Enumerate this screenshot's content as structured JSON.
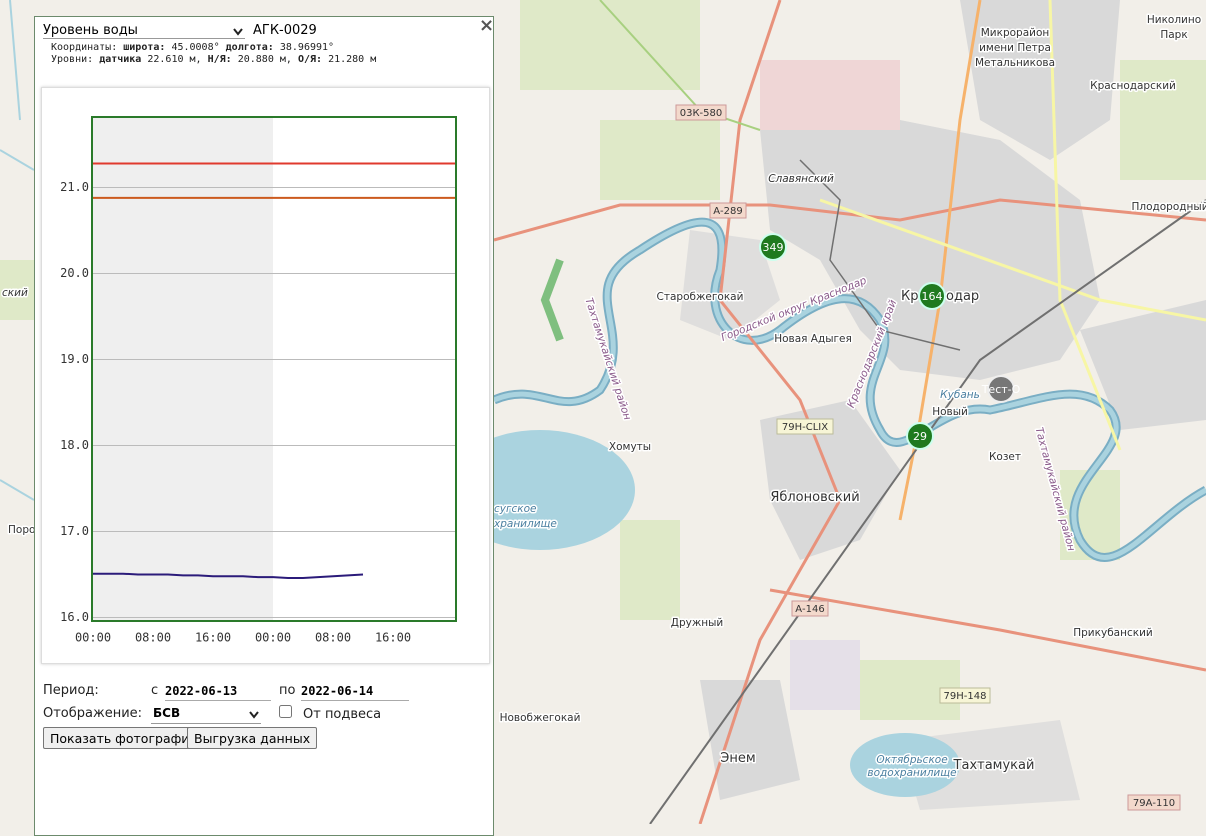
{
  "panel": {
    "select": "Уровень воды",
    "station": "АГК-0029",
    "close": "×",
    "coords": {
      "label": "Координаты:",
      "lat_label": "широта:",
      "lat": "45.0008°",
      "lon_label": "долгота:",
      "lon": "38.96991°"
    },
    "levels": {
      "label": "Уровни:",
      "sensor_label": "датчика",
      "sensor": "22.610 м,",
      "low_label": "Н/Я:",
      "low": "20.880 м,",
      "high_label": "О/Я:",
      "high": "21.280 м"
    }
  },
  "chart_data": {
    "type": "line",
    "x": [
      0,
      2,
      4,
      6,
      8,
      10,
      12,
      14,
      16,
      18,
      20,
      22,
      24,
      26,
      28,
      30,
      32,
      34,
      36
    ],
    "series": [
      {
        "color": "#2b1b7a",
        "values": [
          16.51,
          16.51,
          16.51,
          16.5,
          16.5,
          16.5,
          16.49,
          16.49,
          16.48,
          16.48,
          16.48,
          16.47,
          16.47,
          16.46,
          16.46,
          16.47,
          16.48,
          16.49,
          16.5
        ]
      }
    ],
    "thresholds": [
      {
        "value": 21.28,
        "color": "#e03a2e"
      },
      {
        "value": 20.88,
        "color": "#cc5a1e"
      }
    ],
    "shade": [
      0,
      24
    ],
    "xlim": [
      0,
      48.4
    ],
    "ylim": [
      15.96,
      21.82
    ],
    "xticks": [
      {
        "value": 0,
        "label": "00:00"
      },
      {
        "value": 8,
        "label": "08:00"
      },
      {
        "value": 16,
        "label": "16:00"
      },
      {
        "value": 24,
        "label": "00:00"
      },
      {
        "value": 32,
        "label": "08:00"
      },
      {
        "value": 40,
        "label": "16:00"
      }
    ],
    "yticks": [
      {
        "value": 16,
        "label": "16.0"
      },
      {
        "value": 17,
        "label": "17.0"
      },
      {
        "value": 18,
        "label": "18.0"
      },
      {
        "value": 19,
        "label": "19.0"
      },
      {
        "value": 20,
        "label": "20.0"
      },
      {
        "value": 21,
        "label": "21.0"
      }
    ],
    "grid": true,
    "frame_color": "#2a7a2a"
  },
  "form": {
    "period_label": "Период:",
    "from_label": "с",
    "from": "2022-06-13",
    "to_label": "по",
    "to": "2022-06-14",
    "display_label": "Отображение:",
    "display": "БСВ",
    "checkbox_label": "От подвеса",
    "photos_button": "Показать фотографии",
    "export_button": "Выгрузка данных"
  },
  "map": {
    "labels": [
      "Николино",
      "Парк",
      "Микрорайон",
      "имени Петра",
      "Метальникова",
      "Краснодарский",
      "03К-580",
      "Славянский",
      "А-289",
      "Плодородный",
      "Старобжегокай",
      "Кр",
      "одар",
      "Новая Адыгея",
      "Кубань",
      "Новый",
      "79Н-CLIX",
      "Хомуты",
      "Козет",
      "Яблоновский",
      "А-146",
      "Дружный",
      "Прикубанский",
      "79Н-148",
      "Новобжегокай",
      "Энем",
      "Тахтамукай",
      "Октябрьское",
      "водохранилище",
      "79А-110",
      "Поро",
      "ский",
      "сугское",
      "хранилище"
    ],
    "rotated": [
      "Городской округ Краснодар",
      "Тахтамукайский район",
      "Краснодарский край",
      "Тахтамукайский район"
    ],
    "markers": [
      "349",
      "164",
      "29"
    ],
    "test": "Тест-О"
  }
}
